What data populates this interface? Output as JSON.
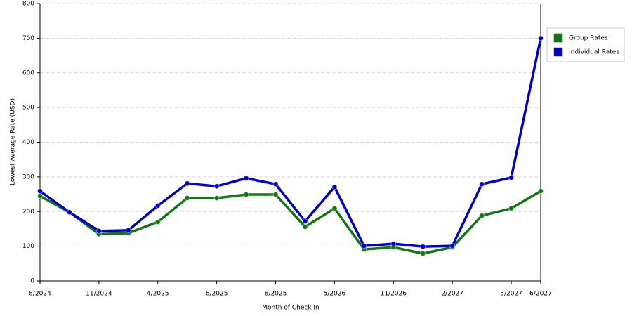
{
  "chart_data": {
    "type": "line",
    "x_label": "Month of Check In",
    "y_label": "Lowest Average Rate (USD)",
    "categories": [
      "8/2024",
      null,
      "11/2024",
      null,
      "4/2025",
      null,
      "6/2025",
      null,
      "8/2025",
      null,
      "5/2026",
      null,
      "11/2026",
      null,
      "2/2027",
      null,
      "5/2027",
      "6/2027"
    ],
    "series": [
      {
        "name": "Group Rates",
        "color": "#117711",
        "values": [
          245,
          198,
          135,
          138,
          170,
          239,
          239,
          249,
          249,
          156,
          209,
          91,
          97,
          79,
          97,
          188,
          209,
          259
        ]
      },
      {
        "name": "Individual Rates",
        "color": "#0000cc",
        "values": [
          259,
          198,
          144,
          146,
          217,
          281,
          273,
          296,
          279,
          172,
          271,
          101,
          107,
          99,
          101,
          279,
          298,
          700
        ]
      }
    ],
    "ylim": [
      0,
      800
    ],
    "yticks": [
      0,
      100,
      200,
      300,
      400,
      500,
      600,
      700,
      800
    ],
    "grid": true,
    "legend": "right"
  }
}
